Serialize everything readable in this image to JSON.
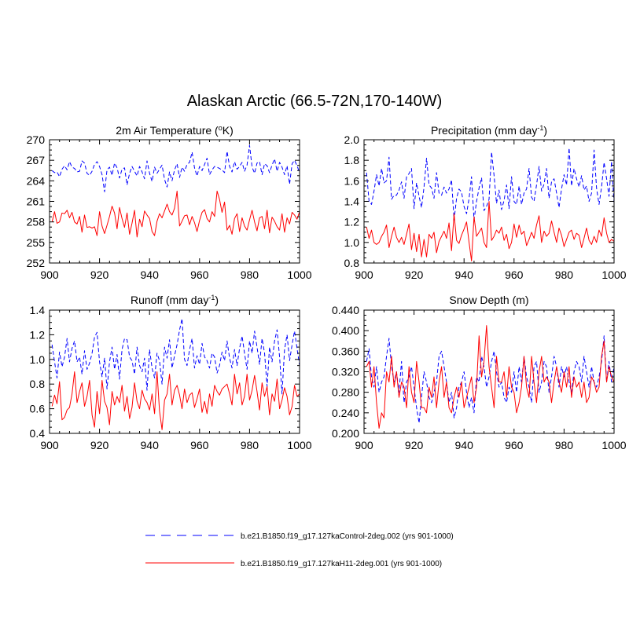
{
  "title": "Alaskan Arctic (66.5-72N,170-140W)",
  "colors": {
    "control": "#0000ff",
    "h11": "#ff0000",
    "axis": "#000000"
  },
  "legend": {
    "control_label": "b.e21.B1850.f19_g17.127kaControl-2deg.002 (yrs 901-1000)",
    "h11_label": "b.e21.B1850.f19_g17.127kaH11-2deg.001 (yrs 901-1000)"
  },
  "chart_data": [
    {
      "type": "line",
      "title": "2m Air Temperature (",
      "title_sup": "o",
      "title_tail": "K)",
      "xlim": [
        900,
        1000
      ],
      "ylim": [
        252,
        270
      ],
      "xticks": [
        900,
        920,
        940,
        960,
        980,
        1000
      ],
      "yticks": [
        252,
        255,
        258,
        261,
        264,
        267,
        270
      ],
      "ytick_labels": [
        "252",
        "255",
        "258",
        "261",
        "264",
        "267",
        "270"
      ],
      "x_start": 901,
      "series": [
        {
          "name": "Control",
          "style": "dashed",
          "values": [
            265.5,
            265.2,
            265.3,
            264.6,
            265.7,
            266.2,
            265.6,
            266.8,
            266.0,
            265.8,
            265.3,
            265.4,
            266.9,
            266.6,
            265.1,
            264.8,
            265.4,
            266.4,
            266.8,
            266.1,
            264.9,
            262.4,
            265.6,
            266.0,
            264.8,
            266.6,
            265.9,
            264.4,
            265.7,
            265.9,
            263.4,
            265.1,
            266.1,
            265.4,
            264.7,
            266.1,
            265.3,
            264.3,
            266.9,
            265.1,
            263.9,
            266.0,
            265.1,
            265.7,
            266.3,
            264.2,
            263.1,
            265.3,
            264.0,
            265.6,
            266.5,
            264.5,
            266.0,
            265.4,
            266.4,
            266.7,
            268.2,
            265.9,
            264.7,
            266.1,
            265.5,
            266.4,
            267.3,
            264.9,
            265.6,
            266.1,
            266.0,
            265.8,
            265.6,
            265.2,
            268.3,
            266.1,
            265.3,
            266.8,
            265.7,
            266.1,
            266.7,
            265.4,
            266.3,
            269.2,
            266.0,
            265.1,
            266.6,
            266.8,
            264.9,
            266.5,
            266.2,
            265.2,
            266.3,
            267.2,
            265.4,
            266.7,
            266.0,
            264.9,
            266.2,
            263.5,
            266.5,
            267.0,
            266.2,
            265.2
          ]
        },
        {
          "name": "H11",
          "style": "solid",
          "values": [
            258.0,
            259.5,
            257.8,
            258.0,
            259.3,
            259.2,
            259.7,
            258.6,
            259.4,
            258.0,
            257.7,
            258.8,
            256.5,
            259.0,
            257.2,
            257.3,
            257.1,
            257.3,
            256.0,
            259.5,
            257.4,
            256.3,
            257.5,
            258.8,
            260.3,
            259.3,
            257.0,
            260.1,
            258.5,
            257.2,
            259.3,
            256.2,
            257.8,
            259.7,
            255.8,
            258.4,
            257.3,
            259.6,
            259.0,
            258.5,
            256.6,
            256.0,
            258.1,
            259.2,
            258.6,
            259.6,
            260.6,
            259.5,
            259.0,
            260.0,
            262.5,
            257.4,
            258.1,
            258.9,
            259.0,
            257.6,
            258.8,
            257.9,
            256.6,
            258.2,
            259.4,
            259.8,
            258.5,
            258.0,
            259.5,
            258.8,
            262.5,
            261.3,
            259.4,
            260.9,
            256.8,
            257.5,
            256.2,
            258.5,
            259.2,
            256.6,
            258.6,
            257.4,
            256.8,
            258.3,
            259.7,
            258.0,
            256.7,
            258.6,
            258.8,
            257.0,
            259.7,
            256.4,
            258.7,
            258.1,
            257.3,
            256.8,
            259.2,
            256.5,
            258.6,
            257.7,
            259.4,
            259.0,
            258.4,
            259.5
          ]
        }
      ]
    },
    {
      "type": "line",
      "title": "Precipitation (mm day",
      "title_sup": "-1",
      "title_tail": ")",
      "xlim": [
        900,
        1000
      ],
      "ylim": [
        0.8,
        2.0
      ],
      "xticks": [
        900,
        920,
        940,
        960,
        980,
        1000
      ],
      "yticks": [
        0.8,
        1.0,
        1.2,
        1.4,
        1.6,
        1.8,
        2.0
      ],
      "ytick_labels": [
        "0.8",
        "1.0",
        "1.2",
        "1.4",
        "1.6",
        "1.8",
        "2.0"
      ],
      "x_start": 901,
      "series": [
        {
          "name": "Control",
          "style": "dashed",
          "values": [
            1.68,
            1.4,
            1.37,
            1.5,
            1.66,
            1.55,
            1.72,
            1.58,
            1.6,
            1.83,
            1.42,
            1.46,
            1.46,
            1.51,
            1.59,
            1.43,
            1.64,
            1.67,
            1.72,
            1.33,
            1.58,
            1.45,
            1.34,
            1.54,
            1.82,
            1.56,
            1.53,
            1.43,
            1.68,
            1.48,
            1.46,
            1.54,
            1.48,
            1.52,
            1.61,
            1.22,
            1.43,
            1.52,
            1.49,
            1.35,
            1.28,
            1.43,
            1.64,
            1.22,
            1.4,
            1.53,
            1.63,
            1.31,
            1.35,
            1.42,
            1.88,
            1.65,
            1.38,
            1.51,
            1.32,
            1.41,
            1.56,
            1.33,
            1.64,
            1.4,
            1.37,
            1.55,
            1.37,
            1.48,
            1.52,
            1.72,
            1.44,
            1.4,
            1.56,
            1.74,
            1.5,
            1.57,
            1.72,
            1.43,
            1.59,
            1.62,
            1.48,
            1.34,
            1.52,
            1.66,
            1.56,
            1.92,
            1.55,
            1.72,
            1.62,
            1.54,
            1.65,
            1.51,
            1.55,
            1.4,
            1.48,
            1.9,
            1.53,
            1.37,
            1.54,
            1.78,
            1.62,
            1.45,
            1.79,
            1.38
          ]
        },
        {
          "name": "H11",
          "style": "solid",
          "values": [
            1.15,
            1.04,
            1.12,
            1.0,
            0.98,
            1.0,
            1.06,
            1.1,
            1.17,
            0.95,
            1.06,
            1.15,
            1.05,
            1.0,
            1.05,
            0.98,
            1.08,
            1.18,
            0.93,
            1.09,
            0.91,
            1.08,
            0.86,
            1.03,
            0.86,
            1.08,
            1.04,
            1.1,
            0.9,
            1.01,
            1.06,
            1.11,
            1.04,
            1.19,
            0.92,
            1.28,
            1.02,
            0.99,
            1.07,
            1.13,
            1.2,
            1.0,
            0.82,
            1.25,
            1.06,
            1.1,
            1.14,
            1.0,
            0.95,
            1.4,
            1.02,
            1.06,
            1.12,
            1.09,
            1.15,
            1.02,
            1.08,
            0.94,
            1.0,
            1.18,
            1.05,
            1.17,
            1.08,
            1.11,
            0.97,
            1.03,
            1.1,
            1.04,
            1.17,
            1.26,
            1.0,
            1.11,
            1.06,
            1.09,
            1.21,
            1.1,
            1.0,
            1.14,
            1.07,
            0.96,
            1.03,
            1.1,
            1.12,
            1.03,
            1.09,
            1.07,
            0.95,
            1.04,
            1.14,
            1.02,
            0.98,
            1.06,
            1.0,
            1.12,
            1.06,
            1.24,
            1.09,
            1.0,
            1.03,
            1.01
          ]
        }
      ]
    },
    {
      "type": "line",
      "title": "Runoff (mm day",
      "title_sup": "-1",
      "title_tail": ")",
      "xlim": [
        900,
        1000
      ],
      "ylim": [
        0.4,
        1.4
      ],
      "xticks": [
        900,
        920,
        940,
        960,
        980,
        1000
      ],
      "yticks": [
        0.4,
        0.6,
        0.8,
        1.0,
        1.2,
        1.4
      ],
      "ytick_labels": [
        "0.4",
        "0.6",
        "0.8",
        "1.0",
        "1.2",
        "1.4"
      ],
      "x_start": 901,
      "series": [
        {
          "name": "Control",
          "style": "dashed",
          "values": [
            1.12,
            0.98,
            0.85,
            1.06,
            0.94,
            1.02,
            1.17,
            0.98,
            1.09,
            1.15,
            0.98,
            1.02,
            0.88,
            1.07,
            0.92,
            0.97,
            1.05,
            1.18,
            1.22,
            0.98,
            0.86,
            1.01,
            0.76,
            0.98,
            1.1,
            0.92,
            1.04,
            0.84,
            1.08,
            1.17,
            1.16,
            1.02,
            0.99,
            0.88,
            1.1,
            0.95,
            0.9,
            1.01,
            0.75,
            1.08,
            0.93,
            0.85,
            1.05,
            0.99,
            0.8,
            1.1,
            1.01,
            1.16,
            0.93,
            1.03,
            1.12,
            1.24,
            1.33,
            1.0,
            0.95,
            1.08,
            1.17,
            0.93,
            1.03,
            0.96,
            1.13,
            1.02,
            0.99,
            0.93,
            1.05,
            1.02,
            0.89,
            0.95,
            1.06,
            0.99,
            1.15,
            1.01,
            0.93,
            1.08,
            0.95,
            1.09,
            1.19,
            1.05,
            0.92,
            1.15,
            1.05,
            1.23,
            1.1,
            0.96,
            1.17,
            1.05,
            0.78,
            1.1,
            0.98,
            1.15,
            1.24,
            1.02,
            0.72,
            1.08,
            1.2,
            0.99,
            1.12,
            1.23,
            1.09,
            0.95
          ]
        },
        {
          "name": "H11",
          "style": "solid",
          "values": [
            0.62,
            0.71,
            0.64,
            0.82,
            0.51,
            0.53,
            0.59,
            0.61,
            0.72,
            0.9,
            0.65,
            0.74,
            0.81,
            0.62,
            0.7,
            0.83,
            0.55,
            0.45,
            0.74,
            0.56,
            0.83,
            0.66,
            0.61,
            0.47,
            0.74,
            0.63,
            0.7,
            0.65,
            0.79,
            0.58,
            0.7,
            0.52,
            0.61,
            0.81,
            0.66,
            0.6,
            0.75,
            0.68,
            0.65,
            0.59,
            0.72,
            0.56,
            0.9,
            0.58,
            0.43,
            0.67,
            0.72,
            0.88,
            0.63,
            0.75,
            0.79,
            0.71,
            0.6,
            0.76,
            0.65,
            0.71,
            0.73,
            0.61,
            0.68,
            0.76,
            0.57,
            0.66,
            0.56,
            0.72,
            0.62,
            0.79,
            0.74,
            0.71,
            0.76,
            0.78,
            0.8,
            0.72,
            0.63,
            0.88,
            0.72,
            0.81,
            0.63,
            0.7,
            0.88,
            0.67,
            0.75,
            0.87,
            0.74,
            0.59,
            0.81,
            0.7,
            0.78,
            0.55,
            0.72,
            0.66,
            0.84,
            0.6,
            0.67,
            0.77,
            0.7,
            0.55,
            0.62,
            0.79,
            0.7,
            0.72
          ]
        }
      ]
    },
    {
      "type": "line",
      "title": "Snow Depth (m)",
      "title_sup": "",
      "title_tail": "",
      "xlim": [
        900,
        1000
      ],
      "ylim": [
        0.2,
        0.44
      ],
      "xticks": [
        900,
        920,
        940,
        960,
        980,
        1000
      ],
      "yticks": [
        0.2,
        0.24,
        0.28,
        0.32,
        0.36,
        0.4,
        0.44
      ],
      "ytick_labels": [
        "0.200",
        "0.240",
        "0.280",
        "0.320",
        "0.360",
        "0.400",
        "0.440"
      ],
      "x_start": 901,
      "series": [
        {
          "name": "Control",
          "style": "dashed",
          "values": [
            0.34,
            0.365,
            0.31,
            0.29,
            0.33,
            0.28,
            0.3,
            0.31,
            0.35,
            0.385,
            0.33,
            0.3,
            0.32,
            0.28,
            0.34,
            0.26,
            0.3,
            0.31,
            0.33,
            0.29,
            0.25,
            0.22,
            0.27,
            0.32,
            0.3,
            0.27,
            0.26,
            0.28,
            0.3,
            0.35,
            0.36,
            0.33,
            0.3,
            0.26,
            0.28,
            0.23,
            0.25,
            0.29,
            0.3,
            0.32,
            0.28,
            0.25,
            0.27,
            0.24,
            0.31,
            0.3,
            0.35,
            0.33,
            0.29,
            0.31,
            0.34,
            0.36,
            0.32,
            0.29,
            0.3,
            0.27,
            0.26,
            0.29,
            0.28,
            0.32,
            0.28,
            0.33,
            0.3,
            0.35,
            0.31,
            0.29,
            0.26,
            0.33,
            0.34,
            0.28,
            0.3,
            0.34,
            0.33,
            0.28,
            0.31,
            0.35,
            0.33,
            0.29,
            0.33,
            0.31,
            0.33,
            0.3,
            0.28,
            0.32,
            0.34,
            0.33,
            0.3,
            0.35,
            0.32,
            0.29,
            0.33,
            0.3,
            0.29,
            0.31,
            0.34,
            0.39,
            0.3,
            0.34,
            0.3,
            0.33
          ]
        },
        {
          "name": "H11",
          "style": "solid",
          "values": [
            0.33,
            0.34,
            0.29,
            0.33,
            0.26,
            0.21,
            0.24,
            0.23,
            0.32,
            0.3,
            0.35,
            0.29,
            0.32,
            0.27,
            0.3,
            0.29,
            0.25,
            0.33,
            0.28,
            0.26,
            0.34,
            0.3,
            0.25,
            0.25,
            0.24,
            0.29,
            0.27,
            0.31,
            0.25,
            0.3,
            0.33,
            0.27,
            0.3,
            0.25,
            0.24,
            0.27,
            0.29,
            0.27,
            0.3,
            0.25,
            0.27,
            0.29,
            0.31,
            0.26,
            0.29,
            0.39,
            0.31,
            0.34,
            0.41,
            0.33,
            0.29,
            0.25,
            0.35,
            0.3,
            0.3,
            0.32,
            0.27,
            0.33,
            0.29,
            0.28,
            0.24,
            0.26,
            0.29,
            0.35,
            0.29,
            0.27,
            0.35,
            0.3,
            0.26,
            0.32,
            0.35,
            0.3,
            0.31,
            0.3,
            0.26,
            0.3,
            0.33,
            0.3,
            0.28,
            0.32,
            0.29,
            0.33,
            0.27,
            0.31,
            0.29,
            0.3,
            0.27,
            0.3,
            0.26,
            0.27,
            0.31,
            0.3,
            0.28,
            0.29,
            0.35,
            0.38,
            0.3,
            0.33,
            0.31,
            0.3
          ]
        }
      ]
    }
  ]
}
